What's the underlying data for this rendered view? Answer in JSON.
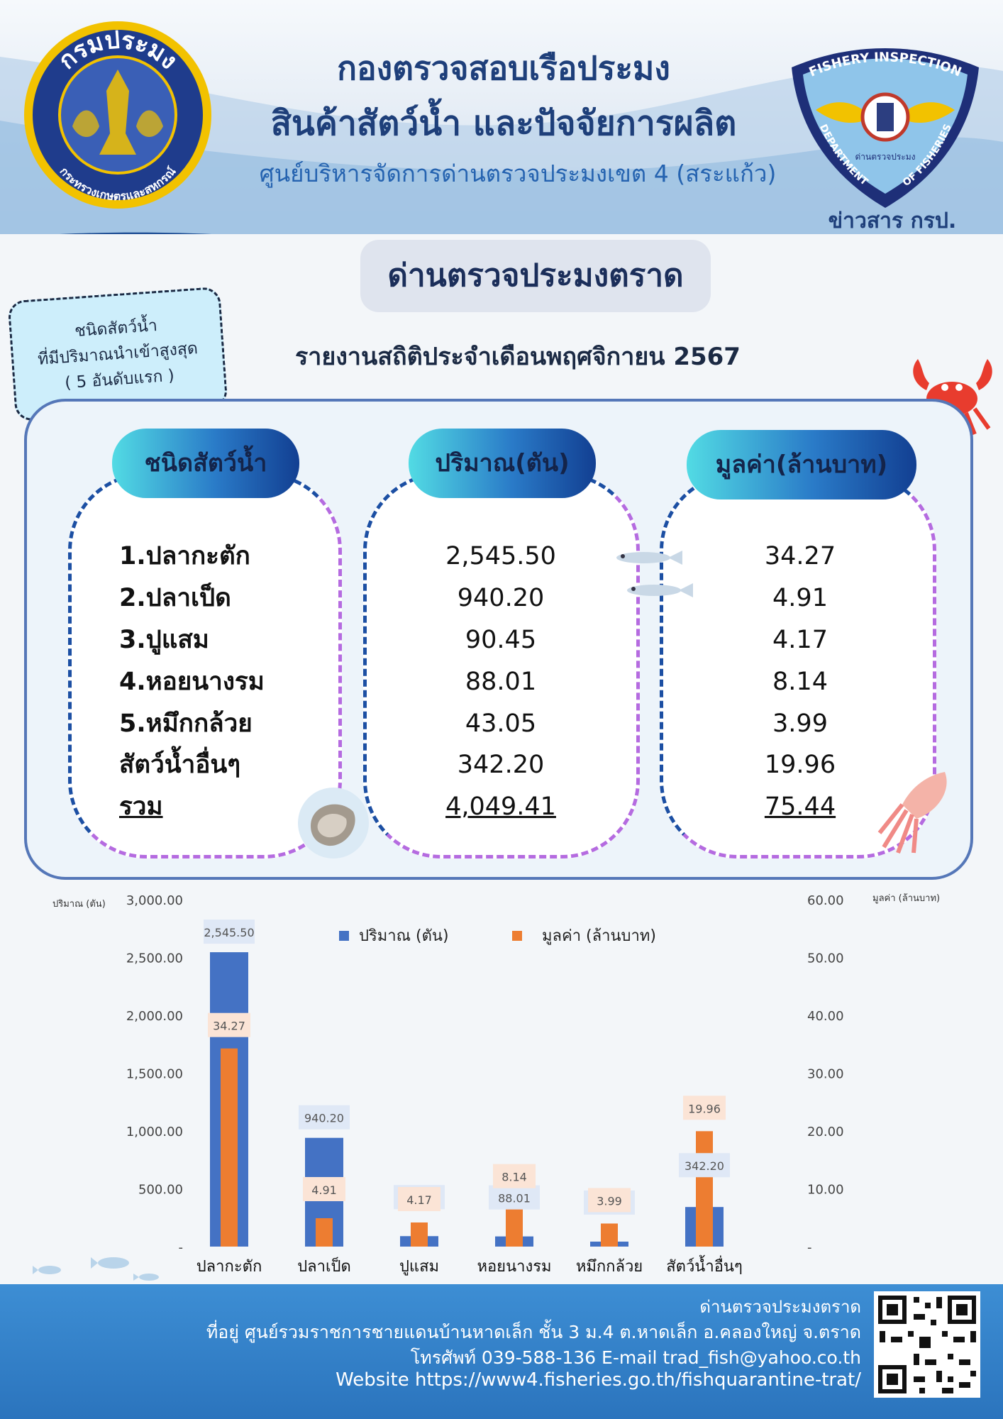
{
  "header": {
    "logo_left_text_top": "กรมประมง",
    "logo_left_text_bottom": "กระทรวงเกษตรและสหกรณ์",
    "logo_right_text_top": "FISHERY INSPECTION",
    "logo_right_text_left": "DEPARTMENT",
    "logo_right_text_right": "OF FISHERIES",
    "logo_right_text_inner": "ด่านตรวจประมง",
    "title_line1": "กองตรวจสอบเรือประมง",
    "title_line2": "สินค้าสัตว์น้ำ และปัจจัยการผลิต",
    "title_line3": "ศูนย์บริหารจัดการด่านตรวจประมงเขต 4 (สระแก้ว)",
    "news_label": "ข่าวสาร กรป."
  },
  "station_title": "ด่านตรวจประมงตราด",
  "note": {
    "line1": "ชนิดสัตว์น้ำ",
    "line2": "ที่มีปริมาณนำเข้าสูงสุด",
    "line3": "( 5 อันดับแรก )"
  },
  "report_title": "รายงานสถิติประจำเดือนพฤศจิกายน 2567",
  "table": {
    "headers": [
      "ชนิดสัตว์น้ำ",
      "ปริมาณ(ตัน)",
      "มูลค่า(ล้านบาท)"
    ],
    "rows": [
      {
        "name": "1.ปลากะตัก",
        "qty": "2,545.50",
        "value": "34.27"
      },
      {
        "name": "2.ปลาเป็ด",
        "qty": "940.20",
        "value": "4.91"
      },
      {
        "name": "3.ปูแสม",
        "qty": "90.45",
        "value": "4.17"
      },
      {
        "name": "4.หอยนางรม",
        "qty": "88.01",
        "value": "8.14"
      },
      {
        "name": "5.หมึกกล้วย",
        "qty": "43.05",
        "value": "3.99"
      },
      {
        "name": "สัตว์น้ำอื่นๆ",
        "qty": "342.20",
        "value": "19.96"
      }
    ],
    "total": {
      "name": "รวม",
      "qty": "4,049.41",
      "value": "75.44"
    }
  },
  "chart_data": {
    "type": "bar",
    "categories": [
      "ปลากะตัก",
      "ปลาเป็ด",
      "ปูแสม",
      "หอยนางรม",
      "หมึกกล้วย",
      "สัตว์น้ำอื่นๆ"
    ],
    "series": [
      {
        "name": "ปริมาณ (ตัน)",
        "axis": "left",
        "values": [
          2545.5,
          940.2,
          90.45,
          88.01,
          43.05,
          342.2
        ],
        "labels": [
          "2,545.50",
          "940.20",
          "90.45",
          "88.01",
          "43.05",
          "342.20"
        ],
        "color": "#4472c4"
      },
      {
        "name": "มูลค่า (ล้านบาท)",
        "axis": "right",
        "values": [
          34.27,
          4.91,
          4.17,
          8.14,
          3.99,
          19.96
        ],
        "labels": [
          "34.27",
          "4.91",
          "4.17",
          "8.14",
          "3.99",
          "19.96"
        ],
        "color": "#ed7d31"
      }
    ],
    "ylabel_left": "ปริมาณ (ตัน)",
    "ylabel_right": "มูลค่า (ล้านบาท)",
    "ylim_left": [
      0,
      3000
    ],
    "ylim_right": [
      0,
      60
    ],
    "yticks_left": [
      "-",
      "500.00",
      "1,000.00",
      "1,500.00",
      "2,000.00",
      "2,500.00",
      "3,000.00"
    ],
    "yticks_right": [
      "-",
      "10.00",
      "20.00",
      "30.00",
      "40.00",
      "50.00",
      "60.00"
    ],
    "legend_position": "top-center",
    "grid": false
  },
  "footer": {
    "line1": "ด่านตรวจประมงตราด",
    "line2": "ที่อยู่ ศูนย์รวมราชการชายแดนบ้านหาดเล็ก ชั้น 3 ม.4 ต.หาดเล็ก อ.คลองใหญ่ จ.ตราด",
    "line3": "โทรศัพท์ 039-588-136  E-mail trad_fish@yahoo.co.th",
    "line4": "Website https://www4.fisheries.go.th/fishquarantine-trat/"
  }
}
